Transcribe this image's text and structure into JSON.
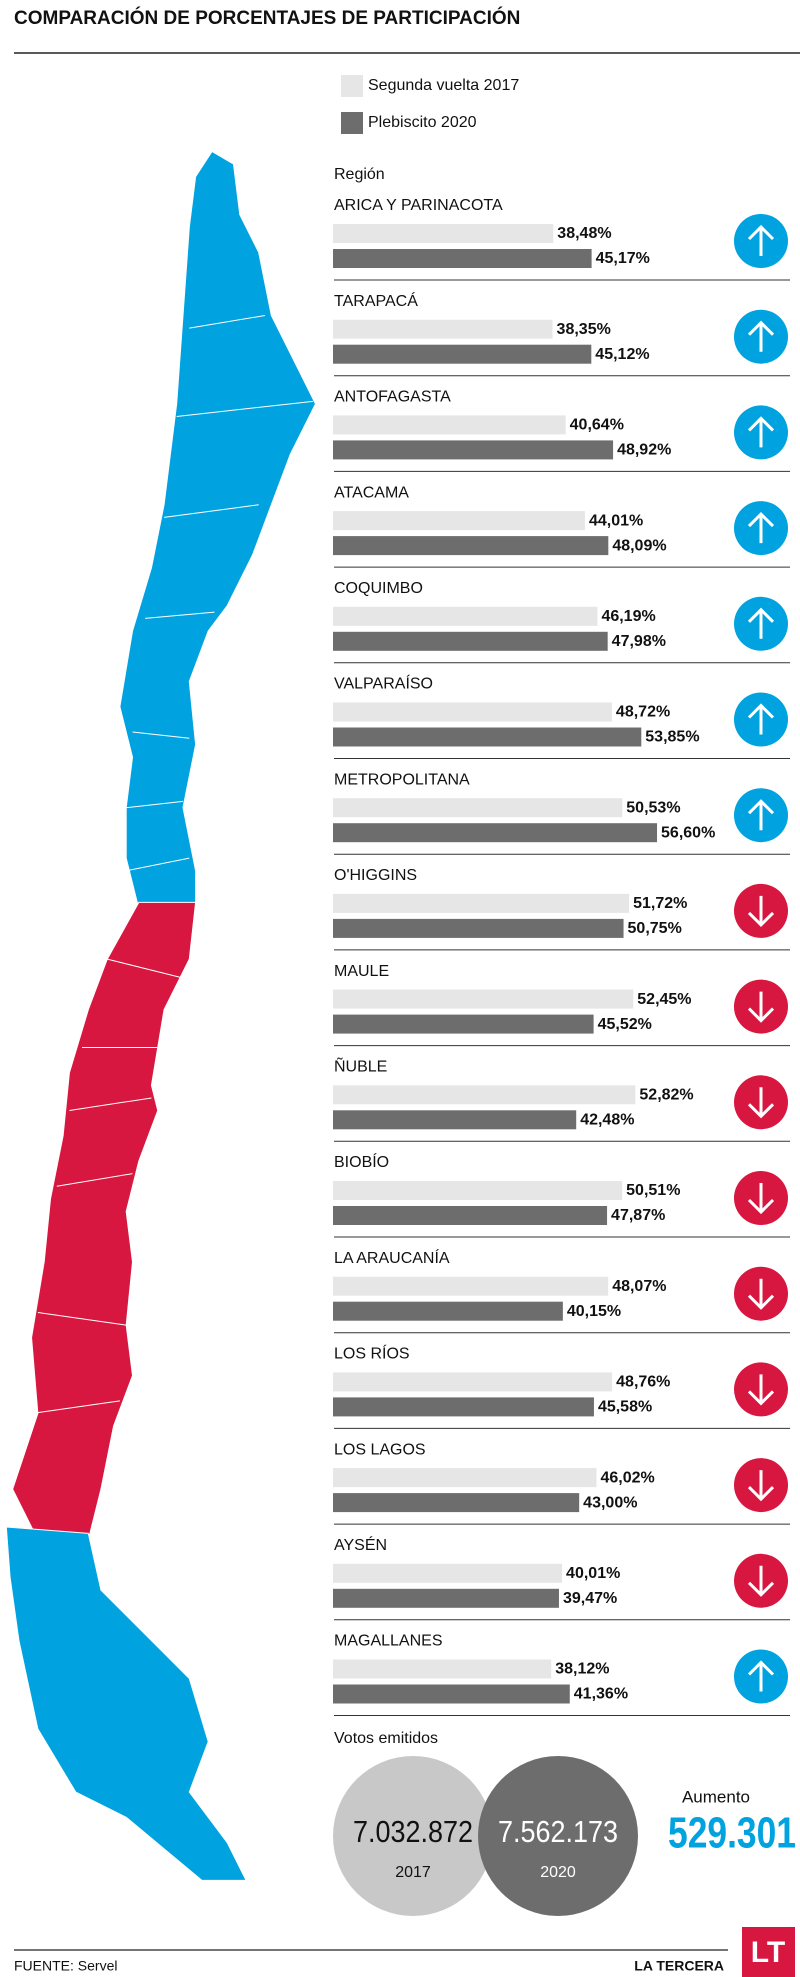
{
  "chart_data": {
    "type": "bar",
    "orientation": "horizontal",
    "title": "COMPARACIÓN DE PORCENTAJES DE PARTICIPACIÓN",
    "category_label": "Región",
    "categories": [
      "ARICA Y PARINACOTA",
      "TARAPACÁ",
      "ANTOFAGASTA",
      "ATACAMA",
      "COQUIMBO",
      "VALPARAÍSO",
      "METROPOLITANA",
      "O'HIGGINS",
      "MAULE",
      "ÑUBLE",
      "BIOBÍO",
      "LA ARAUCANÍA",
      "LOS RÍOS",
      "LOS LAGOS",
      "AYSÉN",
      "MAGALLANES"
    ],
    "series": [
      {
        "name": "Segunda vuelta 2017",
        "color": "#e6e6e6",
        "values": [
          38.48,
          38.35,
          40.64,
          44.01,
          46.19,
          48.72,
          50.53,
          51.72,
          52.45,
          52.82,
          50.51,
          48.07,
          48.76,
          46.02,
          40.01,
          38.12
        ],
        "value_labels": [
          "38,48%",
          "38,35%",
          "40,64%",
          "44,01%",
          "46,19%",
          "48,72%",
          "50,53%",
          "51,72%",
          "52,45%",
          "52,82%",
          "50,51%",
          "48,07%",
          "48,76%",
          "46,02%",
          "40,01%",
          "38,12%"
        ]
      },
      {
        "name": "Plebiscito 2020",
        "color": "#6d6d6d",
        "values": [
          45.17,
          45.12,
          48.92,
          48.09,
          47.98,
          53.85,
          56.6,
          50.75,
          45.52,
          42.48,
          47.87,
          40.15,
          45.58,
          43.0,
          39.47,
          41.36
        ],
        "value_labels": [
          "45,17%",
          "45,12%",
          "48,92%",
          "48,09%",
          "47,98%",
          "53,85%",
          "56,60%",
          "50,75%",
          "45,52%",
          "42,48%",
          "47,87%",
          "40,15%",
          "45,58%",
          "43,00%",
          "39,47%",
          "41,36%"
        ]
      }
    ],
    "xlim": [
      0,
      80
    ],
    "trend_colors": {
      "up": "#00a3e0",
      "down": "#d7173f"
    }
  },
  "votes": {
    "title": "Votos emitidos",
    "items": [
      {
        "value": "7.032.872",
        "label": "2017"
      },
      {
        "value": "7.562.173",
        "label": "2020"
      }
    ],
    "increase_label": "Aumento",
    "increase": "529.301"
  },
  "footer": {
    "source": "FUENTE: Servel",
    "brand": "LA TERCERA",
    "logo": "LT"
  }
}
